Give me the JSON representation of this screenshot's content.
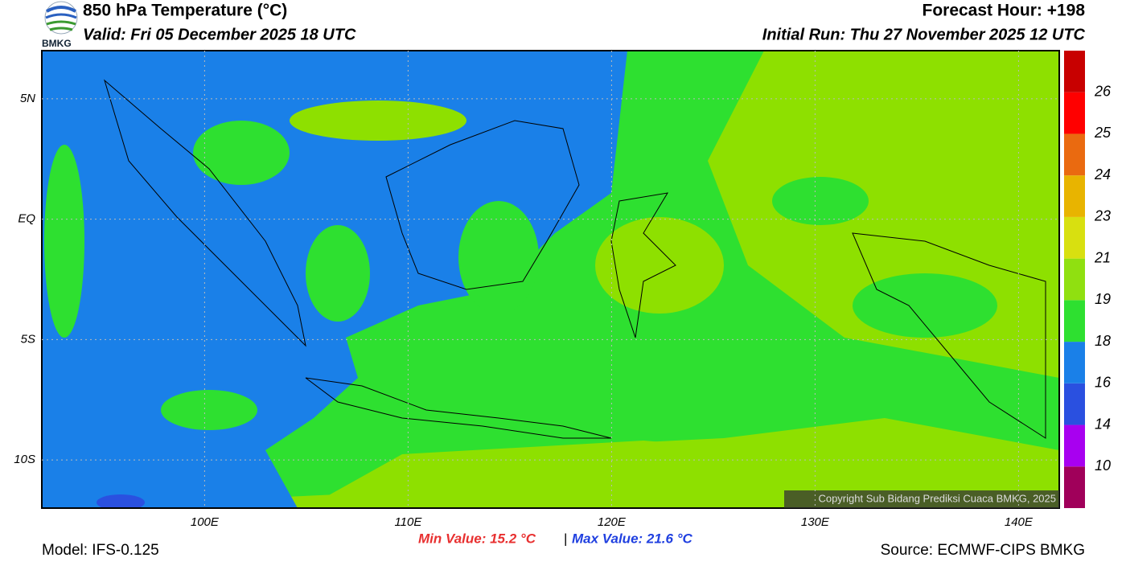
{
  "header": {
    "title": "850 hPa Temperature (°C)",
    "valid": "Valid: Fri 05 December 2025 18 UTC",
    "forecast_hour": "Forecast Hour: +198",
    "initial_run": "Initial Run: Thu 27 November 2025 12 UTC",
    "logo": "BMKG"
  },
  "map": {
    "lonlim": [
      92,
      142
    ],
    "latlim": [
      -12,
      7
    ],
    "lonticks": [
      {
        "value": 100,
        "label": "100E"
      },
      {
        "value": 110,
        "label": "110E"
      },
      {
        "value": 120,
        "label": "120E"
      },
      {
        "value": 130,
        "label": "130E"
      },
      {
        "value": 140,
        "label": "140E"
      }
    ],
    "latticks": [
      {
        "value": 5,
        "label": "5N"
      },
      {
        "value": 0,
        "label": "EQ"
      },
      {
        "value": -5,
        "label": "5S"
      },
      {
        "value": -10,
        "label": "10S"
      }
    ],
    "copyright": "Copyright Sub Bidang Prediksi Cuaca BMKG, 2025"
  },
  "colorbar": {
    "boundaries": [
      10,
      14,
      16,
      18,
      19,
      21,
      23,
      24,
      25,
      26
    ],
    "colors": [
      "#a0005a",
      "#a800f0",
      "#2a50e0",
      "#1a80e8",
      "#2ee030",
      "#90e010",
      "#d8e010",
      "#e8b400",
      "#ea6a10",
      "#ff0000",
      "#c80000"
    ]
  },
  "stats": {
    "min": "Min Value: 15.2 °C",
    "separator": "|",
    "max": "Max Value: 21.6 °C"
  },
  "footer": {
    "model": "Model: IFS-0.125",
    "source": "Source: ECMWF-CIPS BMKG"
  }
}
